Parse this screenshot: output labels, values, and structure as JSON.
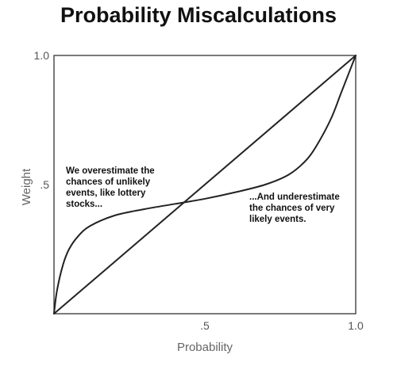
{
  "chart_data": {
    "type": "line",
    "title": "Probability Miscalculations",
    "xlabel": "Probability",
    "ylabel": "Weight",
    "xlim": [
      0,
      1
    ],
    "ylim": [
      0,
      1
    ],
    "grid": false,
    "legend": "none",
    "x_ticks": [
      {
        "value": 0.5,
        "label": ".5"
      },
      {
        "value": 1.0,
        "label": "1.0"
      }
    ],
    "y_ticks": [
      {
        "value": 0.5,
        "label": ".5"
      },
      {
        "value": 1.0,
        "label": "1.0"
      }
    ],
    "series": [
      {
        "style": "straight",
        "color": "#222222",
        "points": [
          [
            0,
            0
          ],
          [
            1,
            1
          ]
        ]
      },
      {
        "style": "curve",
        "color": "#222222",
        "points": [
          [
            0.0,
            0.0
          ],
          [
            0.01,
            0.09
          ],
          [
            0.03,
            0.19
          ],
          [
            0.05,
            0.25
          ],
          [
            0.08,
            0.3
          ],
          [
            0.12,
            0.34
          ],
          [
            0.2,
            0.38
          ],
          [
            0.3,
            0.405
          ],
          [
            0.4,
            0.425
          ],
          [
            0.5,
            0.445
          ],
          [
            0.6,
            0.47
          ],
          [
            0.7,
            0.5
          ],
          [
            0.78,
            0.54
          ],
          [
            0.84,
            0.6
          ],
          [
            0.88,
            0.67
          ],
          [
            0.92,
            0.76
          ],
          [
            0.95,
            0.85
          ],
          [
            0.98,
            0.94
          ],
          [
            1.0,
            1.0
          ]
        ]
      }
    ],
    "annotations": [
      {
        "lines": [
          "We overestimate the",
          "chances of unlikely",
          "events, like lottery",
          "stocks..."
        ]
      },
      {
        "lines": [
          "...And underestimate",
          "the chances of very",
          "likely events."
        ]
      }
    ]
  }
}
